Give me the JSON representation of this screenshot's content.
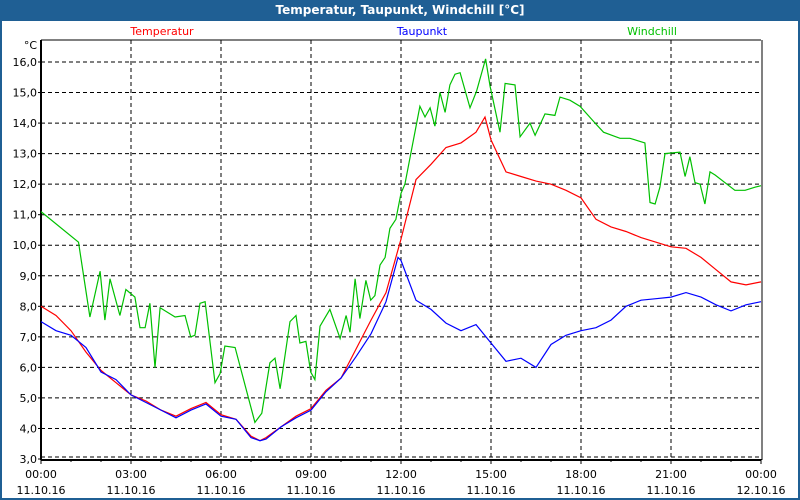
{
  "window": {
    "title": "Temperatur, Taupunkt, Windchill [°C]"
  },
  "chart_data": {
    "type": "line",
    "title": "Temperatur, Taupunkt, Windchill [°C]",
    "ylabel": "°C",
    "xlabel": "",
    "ylim": [
      3,
      16.7
    ],
    "xlim_hours": [
      0,
      24
    ],
    "grid": true,
    "legend_placement": "top",
    "y_ticks": [
      "3,0",
      "4,0",
      "5,0",
      "6,0",
      "7,0",
      "8,0",
      "9,0",
      "10,0",
      "11,0",
      "12,0",
      "13,0",
      "14,0",
      "15,0",
      "16,0"
    ],
    "x_ticks": [
      {
        "time": "00:00",
        "date": "11.10.16"
      },
      {
        "time": "03:00",
        "date": "11.10.16"
      },
      {
        "time": "06:00",
        "date": "11.10.16"
      },
      {
        "time": "09:00",
        "date": "11.10.16"
      },
      {
        "time": "12:00",
        "date": "11.10.16"
      },
      {
        "time": "15:00",
        "date": "11.10.16"
      },
      {
        "time": "18:00",
        "date": "11.10.16"
      },
      {
        "time": "21:00",
        "date": "11.10.16"
      },
      {
        "time": "00:00",
        "date": "12.10.16"
      }
    ],
    "series": [
      {
        "name": "Temperatur",
        "color": "#ff0000",
        "points": [
          [
            0,
            8.0
          ],
          [
            0.5,
            7.7
          ],
          [
            1,
            7.2
          ],
          [
            1.5,
            6.5
          ],
          [
            2,
            5.9
          ],
          [
            2.5,
            5.5
          ],
          [
            3,
            5.1
          ],
          [
            3.5,
            4.9
          ],
          [
            4,
            4.6
          ],
          [
            4.5,
            4.4
          ],
          [
            5,
            4.65
          ],
          [
            5.5,
            4.85
          ],
          [
            6,
            4.45
          ],
          [
            6.5,
            4.3
          ],
          [
            7,
            3.75
          ],
          [
            7.3,
            3.6
          ],
          [
            7.5,
            3.7
          ],
          [
            8,
            4.05
          ],
          [
            8.5,
            4.4
          ],
          [
            9,
            4.65
          ],
          [
            9.5,
            5.25
          ],
          [
            10,
            5.65
          ],
          [
            10.5,
            6.6
          ],
          [
            11,
            7.55
          ],
          [
            11.5,
            8.45
          ],
          [
            12,
            10.2
          ],
          [
            12.5,
            12.15
          ],
          [
            13,
            12.65
          ],
          [
            13.5,
            13.2
          ],
          [
            14,
            13.35
          ],
          [
            14.5,
            13.7
          ],
          [
            14.8,
            14.2
          ],
          [
            15,
            13.45
          ],
          [
            15.5,
            12.4
          ],
          [
            16,
            12.25
          ],
          [
            16.5,
            12.1
          ],
          [
            17,
            12.0
          ],
          [
            17.5,
            11.8
          ],
          [
            18,
            11.55
          ],
          [
            18.5,
            10.85
          ],
          [
            19,
            10.6
          ],
          [
            19.5,
            10.45
          ],
          [
            20,
            10.25
          ],
          [
            20.5,
            10.1
          ],
          [
            21,
            9.95
          ],
          [
            21.5,
            9.9
          ],
          [
            22,
            9.6
          ],
          [
            22.5,
            9.2
          ],
          [
            23,
            8.8
          ],
          [
            23.5,
            8.7
          ],
          [
            24,
            8.8
          ]
        ]
      },
      {
        "name": "Taupunkt",
        "color": "#0000ff",
        "points": [
          [
            0,
            7.5
          ],
          [
            0.5,
            7.2
          ],
          [
            1,
            7.05
          ],
          [
            1.5,
            6.65
          ],
          [
            2,
            5.85
          ],
          [
            2.5,
            5.6
          ],
          [
            3,
            5.1
          ],
          [
            3.5,
            4.85
          ],
          [
            4,
            4.6
          ],
          [
            4.5,
            4.35
          ],
          [
            5,
            4.6
          ],
          [
            5.5,
            4.8
          ],
          [
            6,
            4.4
          ],
          [
            6.5,
            4.3
          ],
          [
            7,
            3.7
          ],
          [
            7.3,
            3.6
          ],
          [
            7.5,
            3.65
          ],
          [
            8,
            4.05
          ],
          [
            8.5,
            4.35
          ],
          [
            9,
            4.6
          ],
          [
            9.5,
            5.2
          ],
          [
            10,
            5.65
          ],
          [
            10.5,
            6.35
          ],
          [
            11,
            7.1
          ],
          [
            11.5,
            8.15
          ],
          [
            11.9,
            9.6
          ],
          [
            12,
            9.5
          ],
          [
            12.5,
            8.2
          ],
          [
            13,
            7.9
          ],
          [
            13.5,
            7.45
          ],
          [
            14,
            7.2
          ],
          [
            14.5,
            7.4
          ],
          [
            15,
            6.8
          ],
          [
            15.5,
            6.2
          ],
          [
            16,
            6.3
          ],
          [
            16.5,
            6.0
          ],
          [
            17,
            6.75
          ],
          [
            17.5,
            7.05
          ],
          [
            18,
            7.2
          ],
          [
            18.5,
            7.3
          ],
          [
            19,
            7.55
          ],
          [
            19.5,
            8.0
          ],
          [
            20,
            8.2
          ],
          [
            20.5,
            8.25
          ],
          [
            21,
            8.3
          ],
          [
            21.5,
            8.45
          ],
          [
            22,
            8.3
          ],
          [
            22.5,
            8.05
          ],
          [
            23,
            7.85
          ],
          [
            23.5,
            8.05
          ],
          [
            24,
            8.15
          ]
        ]
      },
      {
        "name": "Windchill",
        "color": "#00c000",
        "points": [
          [
            0,
            11.1
          ],
          [
            1.25,
            10.1
          ],
          [
            1.63,
            7.65
          ],
          [
            1.97,
            9.15
          ],
          [
            2.13,
            7.55
          ],
          [
            2.3,
            8.9
          ],
          [
            2.63,
            7.7
          ],
          [
            2.83,
            8.55
          ],
          [
            3.13,
            8.3
          ],
          [
            3.3,
            7.3
          ],
          [
            3.47,
            7.3
          ],
          [
            3.63,
            8.1
          ],
          [
            3.8,
            6.0
          ],
          [
            3.97,
            7.95
          ],
          [
            4.47,
            7.65
          ],
          [
            4.8,
            7.7
          ],
          [
            4.99,
            7.0
          ],
          [
            5.13,
            7.05
          ],
          [
            5.3,
            8.1
          ],
          [
            5.47,
            8.15
          ],
          [
            5.8,
            5.5
          ],
          [
            5.97,
            5.8
          ],
          [
            6.13,
            6.7
          ],
          [
            6.47,
            6.65
          ],
          [
            7.13,
            4.2
          ],
          [
            7.36,
            4.5
          ],
          [
            7.63,
            6.15
          ],
          [
            7.8,
            6.3
          ],
          [
            7.97,
            5.3
          ],
          [
            8.3,
            7.5
          ],
          [
            8.5,
            7.7
          ],
          [
            8.63,
            6.8
          ],
          [
            8.83,
            6.85
          ],
          [
            8.99,
            5.85
          ],
          [
            9.13,
            5.6
          ],
          [
            9.3,
            7.35
          ],
          [
            9.63,
            7.9
          ],
          [
            9.97,
            6.95
          ],
          [
            10.17,
            7.7
          ],
          [
            10.3,
            7.15
          ],
          [
            10.47,
            8.9
          ],
          [
            10.63,
            7.6
          ],
          [
            10.83,
            8.85
          ],
          [
            10.99,
            8.2
          ],
          [
            11.13,
            8.35
          ],
          [
            11.3,
            9.35
          ],
          [
            11.47,
            9.6
          ],
          [
            11.63,
            10.55
          ],
          [
            11.83,
            10.85
          ],
          [
            12,
            11.7
          ],
          [
            12.13,
            12.0
          ],
          [
            12.63,
            14.55
          ],
          [
            12.8,
            14.2
          ],
          [
            12.97,
            14.5
          ],
          [
            13.13,
            13.9
          ],
          [
            13.3,
            15.0
          ],
          [
            13.47,
            14.35
          ],
          [
            13.63,
            15.25
          ],
          [
            13.8,
            15.6
          ],
          [
            13.97,
            15.65
          ],
          [
            14.3,
            14.5
          ],
          [
            14.52,
            15.05
          ],
          [
            14.82,
            16.1
          ],
          [
            14.97,
            15.2
          ],
          [
            15.3,
            13.7
          ],
          [
            15.47,
            15.3
          ],
          [
            15.8,
            15.25
          ],
          [
            15.97,
            13.55
          ],
          [
            16.3,
            14.0
          ],
          [
            16.47,
            13.6
          ],
          [
            16.8,
            14.3
          ],
          [
            17.13,
            14.25
          ],
          [
            17.3,
            14.85
          ],
          [
            17.63,
            14.75
          ],
          [
            17.97,
            14.55
          ],
          [
            18.47,
            14.0
          ],
          [
            18.75,
            13.7
          ],
          [
            19.3,
            13.5
          ],
          [
            19.63,
            13.5
          ],
          [
            20.13,
            13.35
          ],
          [
            20.3,
            11.4
          ],
          [
            20.47,
            11.35
          ],
          [
            20.63,
            11.9
          ],
          [
            20.8,
            13.0
          ],
          [
            21.3,
            13.05
          ],
          [
            21.47,
            12.25
          ],
          [
            21.63,
            12.9
          ],
          [
            21.8,
            12.05
          ],
          [
            21.97,
            12.0
          ],
          [
            22.13,
            11.35
          ],
          [
            22.3,
            12.4
          ],
          [
            22.47,
            12.3
          ],
          [
            23.13,
            11.8
          ],
          [
            23.47,
            11.8
          ],
          [
            23.8,
            11.9
          ],
          [
            24,
            11.95
          ]
        ]
      }
    ]
  }
}
